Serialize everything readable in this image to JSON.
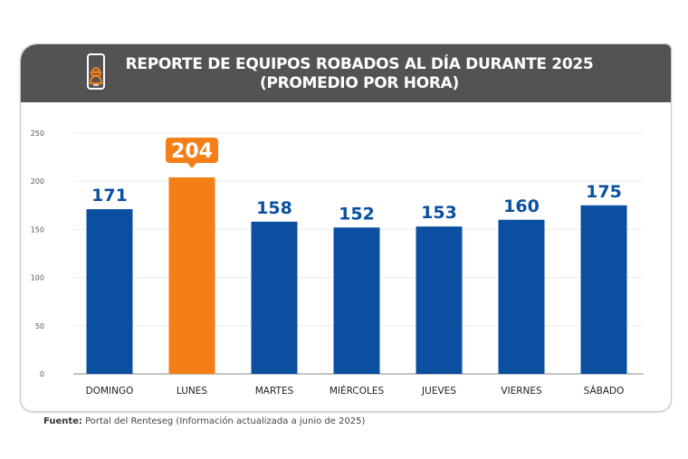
{
  "header": {
    "title_line1": "REPORTE DE EQUIPOS ROBADOS AL DÍA DURANTE 2025",
    "title_line2": "(PROMEDIO POR HORA)",
    "icon": "phone-thief-icon"
  },
  "source": {
    "label": "Fuente:",
    "text": "Portal del Renteseg (Información actualizada a junio de 2025)"
  },
  "colors": {
    "bar_default": "#0a4fa0",
    "bar_highlight": "#f57f17",
    "label_default": "#0a4fa0",
    "header_bg": "#535353"
  },
  "chart_data": {
    "type": "bar",
    "title": "REPORTE DE EQUIPOS ROBADOS AL DÍA DURANTE 2025 (PROMEDIO POR HORA)",
    "xlabel": "",
    "ylabel": "",
    "categories": [
      "DOMINGO",
      "LUNES",
      "MARTES",
      "MIÉRCOLES",
      "JUEVES",
      "VIERNES",
      "SÁBADO"
    ],
    "values": [
      171,
      204,
      158,
      152,
      153,
      160,
      175
    ],
    "highlight_index": 1,
    "ylim": [
      0,
      250
    ],
    "yticks": [
      0,
      50,
      100,
      150,
      200,
      250
    ],
    "grid": true,
    "legend": "none"
  }
}
